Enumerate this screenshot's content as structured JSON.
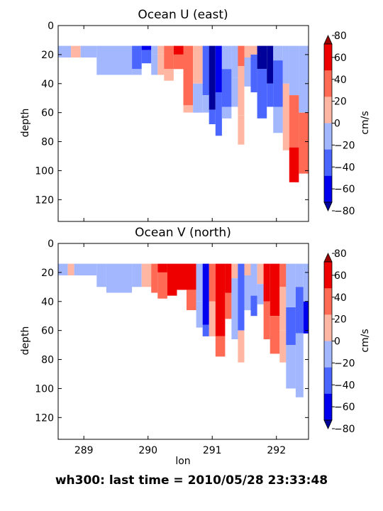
{
  "footer": "wh300: last time = 2010/05/28 23:33:48",
  "colormap": {
    "levels": [
      -80,
      -60,
      -40,
      -20,
      0,
      20,
      40,
      60,
      80
    ],
    "colors": [
      "#00009a",
      "#0000ee",
      "#4a66ff",
      "#a3b7ff",
      "#ffb7a3",
      "#ff6a55",
      "#ee0000",
      "#9a0000"
    ],
    "unit": "cm/s"
  },
  "chart_data": [
    {
      "type": "heatmap",
      "title": "Ocean U (east)",
      "xlabel": "",
      "ylabel": "depth",
      "colorbar_label": "cm/s",
      "xlim": [
        288.6,
        292.5
      ],
      "ylim": [
        135,
        0
      ],
      "x_ticks": [],
      "y_ticks": [
        0,
        20,
        40,
        60,
        80,
        100,
        120
      ],
      "colorbar_ticks": [
        -80,
        -60,
        -40,
        -20,
        0,
        20,
        40,
        60,
        80
      ],
      "columns": [
        {
          "x0": 288.6,
          "x1": 288.8,
          "bands": [
            [
              14,
              22,
              -10
            ]
          ]
        },
        {
          "x0": 288.8,
          "x1": 288.95,
          "bands": [
            [
              14,
              22,
              10
            ]
          ]
        },
        {
          "x0": 288.95,
          "x1": 289.2,
          "bands": [
            [
              14,
              22,
              -10
            ]
          ]
        },
        {
          "x0": 289.2,
          "x1": 289.75,
          "bands": [
            [
              14,
              34,
              -10
            ]
          ]
        },
        {
          "x0": 289.75,
          "x1": 289.9,
          "bands": [
            [
              14,
              30,
              -30
            ],
            [
              30,
              34,
              -10
            ]
          ]
        },
        {
          "x0": 289.9,
          "x1": 290.05,
          "bands": [
            [
              14,
              17,
              -50
            ],
            [
              17,
              26,
              -30
            ]
          ]
        },
        {
          "x0": 290.05,
          "x1": 290.15,
          "bands": [
            [
              14,
              20,
              -10
            ],
            [
              20,
              34,
              -10
            ]
          ]
        },
        {
          "x0": 290.15,
          "x1": 290.25,
          "bands": [
            [
              14,
              20,
              10
            ],
            [
              20,
              34,
              10
            ]
          ]
        },
        {
          "x0": 290.25,
          "x1": 290.4,
          "bands": [
            [
              14,
              30,
              30
            ],
            [
              30,
              38,
              10
            ]
          ]
        },
        {
          "x0": 290.4,
          "x1": 290.55,
          "bands": [
            [
              14,
              20,
              50
            ],
            [
              20,
              30,
              30
            ]
          ]
        },
        {
          "x0": 290.55,
          "x1": 290.7,
          "bands": [
            [
              14,
              55,
              30
            ],
            [
              55,
              60,
              10
            ]
          ]
        },
        {
          "x0": 290.7,
          "x1": 290.85,
          "bands": [
            [
              14,
              40,
              10
            ],
            [
              40,
              60,
              -10
            ]
          ]
        },
        {
          "x0": 290.85,
          "x1": 290.95,
          "bands": [
            [
              14,
              48,
              -30
            ],
            [
              48,
              60,
              -10
            ]
          ]
        },
        {
          "x0": 290.95,
          "x1": 291.05,
          "bands": [
            [
              14,
              58,
              -70
            ],
            [
              58,
              68,
              -30
            ]
          ]
        },
        {
          "x0": 291.05,
          "x1": 291.15,
          "bands": [
            [
              14,
              46,
              -50
            ],
            [
              46,
              76,
              -30
            ]
          ]
        },
        {
          "x0": 291.15,
          "x1": 291.3,
          "bands": [
            [
              14,
              30,
              -10
            ],
            [
              30,
              56,
              -30
            ],
            [
              56,
              64,
              -10
            ]
          ]
        },
        {
          "x0": 291.3,
          "x1": 291.4,
          "bands": [
            [
              14,
              36,
              -10
            ],
            [
              36,
              56,
              -10
            ]
          ]
        },
        {
          "x0": 291.4,
          "x1": 291.5,
          "bands": [
            [
              14,
              28,
              30
            ],
            [
              28,
              62,
              10
            ],
            [
              62,
              82,
              10
            ]
          ]
        },
        {
          "x0": 291.5,
          "x1": 291.6,
          "bands": [
            [
              14,
              22,
              10
            ],
            [
              22,
              42,
              -10
            ]
          ]
        },
        {
          "x0": 291.6,
          "x1": 291.7,
          "bands": [
            [
              14,
              20,
              10
            ],
            [
              20,
              46,
              -30
            ]
          ]
        },
        {
          "x0": 291.7,
          "x1": 291.85,
          "bands": [
            [
              14,
              30,
              -70
            ],
            [
              30,
              64,
              -30
            ]
          ]
        },
        {
          "x0": 291.85,
          "x1": 291.95,
          "bands": [
            [
              14,
              40,
              -70
            ],
            [
              40,
              56,
              -30
            ]
          ]
        },
        {
          "x0": 291.95,
          "x1": 292.1,
          "bands": [
            [
              14,
              24,
              -10
            ],
            [
              24,
              56,
              -30
            ],
            [
              56,
              74,
              -10
            ]
          ]
        },
        {
          "x0": 292.1,
          "x1": 292.2,
          "bands": [
            [
              14,
              40,
              -10
            ],
            [
              40,
              86,
              10
            ]
          ]
        },
        {
          "x0": 292.2,
          "x1": 292.35,
          "bands": [
            [
              14,
              48,
              -10
            ],
            [
              48,
              84,
              30
            ],
            [
              84,
              108,
              50
            ]
          ]
        },
        {
          "x0": 292.35,
          "x1": 292.5,
          "bands": [
            [
              14,
              60,
              -10
            ],
            [
              60,
              102,
              30
            ]
          ]
        }
      ]
    },
    {
      "type": "heatmap",
      "title": "Ocean V (north)",
      "xlabel": "lon",
      "ylabel": "depth",
      "colorbar_label": "cm/s",
      "xlim": [
        288.6,
        292.5
      ],
      "ylim": [
        135,
        0
      ],
      "x_ticks": [
        289,
        290,
        291,
        292
      ],
      "y_ticks": [
        0,
        20,
        40,
        60,
        80,
        100,
        120
      ],
      "colorbar_ticks": [
        -80,
        -60,
        -40,
        -20,
        0,
        20,
        40,
        60,
        80
      ],
      "columns": [
        {
          "x0": 288.6,
          "x1": 288.75,
          "bands": [
            [
              14,
              22,
              -10
            ]
          ]
        },
        {
          "x0": 288.75,
          "x1": 288.85,
          "bands": [
            [
              14,
              22,
              10
            ]
          ]
        },
        {
          "x0": 288.85,
          "x1": 289.2,
          "bands": [
            [
              14,
              22,
              -10
            ]
          ]
        },
        {
          "x0": 289.2,
          "x1": 289.35,
          "bands": [
            [
              14,
              30,
              -10
            ]
          ]
        },
        {
          "x0": 289.35,
          "x1": 289.75,
          "bands": [
            [
              14,
              34,
              -10
            ]
          ]
        },
        {
          "x0": 289.75,
          "x1": 289.9,
          "bands": [
            [
              14,
              30,
              -10
            ]
          ]
        },
        {
          "x0": 289.9,
          "x1": 290.05,
          "bands": [
            [
              14,
              30,
              10
            ]
          ]
        },
        {
          "x0": 290.05,
          "x1": 290.15,
          "bands": [
            [
              14,
              34,
              30
            ]
          ]
        },
        {
          "x0": 290.15,
          "x1": 290.3,
          "bands": [
            [
              14,
              20,
              50
            ],
            [
              20,
              38,
              30
            ]
          ]
        },
        {
          "x0": 290.3,
          "x1": 290.45,
          "bands": [
            [
              14,
              36,
              50
            ]
          ]
        },
        {
          "x0": 290.45,
          "x1": 290.6,
          "bands": [
            [
              14,
              32,
              50
            ]
          ]
        },
        {
          "x0": 290.6,
          "x1": 290.75,
          "bands": [
            [
              14,
              32,
              50
            ],
            [
              32,
              46,
              30
            ]
          ]
        },
        {
          "x0": 290.75,
          "x1": 290.85,
          "bands": [
            [
              14,
              40,
              -10
            ],
            [
              40,
              58,
              -10
            ]
          ]
        },
        {
          "x0": 290.85,
          "x1": 290.95,
          "bands": [
            [
              14,
              56,
              -50
            ],
            [
              56,
              64,
              -30
            ]
          ]
        },
        {
          "x0": 290.95,
          "x1": 291.05,
          "bands": [
            [
              14,
              40,
              30
            ],
            [
              40,
              64,
              10
            ]
          ]
        },
        {
          "x0": 291.05,
          "x1": 291.2,
          "bands": [
            [
              14,
              64,
              50
            ],
            [
              64,
              78,
              30
            ]
          ]
        },
        {
          "x0": 291.2,
          "x1": 291.3,
          "bands": [
            [
              14,
              34,
              50
            ],
            [
              34,
              52,
              30
            ]
          ]
        },
        {
          "x0": 291.3,
          "x1": 291.4,
          "bands": [
            [
              14,
              24,
              10
            ],
            [
              24,
              66,
              -10
            ]
          ]
        },
        {
          "x0": 291.4,
          "x1": 291.5,
          "bands": [
            [
              14,
              60,
              -30
            ],
            [
              60,
              82,
              10
            ]
          ]
        },
        {
          "x0": 291.5,
          "x1": 291.6,
          "bands": [
            [
              14,
              22,
              10
            ],
            [
              22,
              46,
              -10
            ]
          ]
        },
        {
          "x0": 291.6,
          "x1": 291.7,
          "bands": [
            [
              14,
              36,
              -10
            ],
            [
              36,
              50,
              -30
            ]
          ]
        },
        {
          "x0": 291.7,
          "x1": 291.8,
          "bands": [
            [
              14,
              28,
              10
            ],
            [
              28,
              42,
              -10
            ]
          ]
        },
        {
          "x0": 291.8,
          "x1": 291.9,
          "bands": [
            [
              14,
              40,
              50
            ],
            [
              40,
              66,
              30
            ]
          ]
        },
        {
          "x0": 291.9,
          "x1": 292.05,
          "bands": [
            [
              14,
              50,
              50
            ],
            [
              50,
              76,
              30
            ]
          ]
        },
        {
          "x0": 292.05,
          "x1": 292.15,
          "bands": [
            [
              14,
              30,
              30
            ],
            [
              30,
              60,
              10
            ],
            [
              60,
              82,
              10
            ]
          ]
        },
        {
          "x0": 292.15,
          "x1": 292.3,
          "bands": [
            [
              14,
              44,
              -10
            ],
            [
              44,
              70,
              -30
            ],
            [
              70,
              100,
              -10
            ]
          ]
        },
        {
          "x0": 292.3,
          "x1": 292.42,
          "bands": [
            [
              14,
              30,
              -10
            ],
            [
              30,
              62,
              -30
            ],
            [
              62,
              106,
              -10
            ]
          ]
        },
        {
          "x0": 292.42,
          "x1": 292.5,
          "bands": [
            [
              14,
              40,
              -10
            ],
            [
              40,
              62,
              -50
            ]
          ]
        }
      ]
    }
  ]
}
